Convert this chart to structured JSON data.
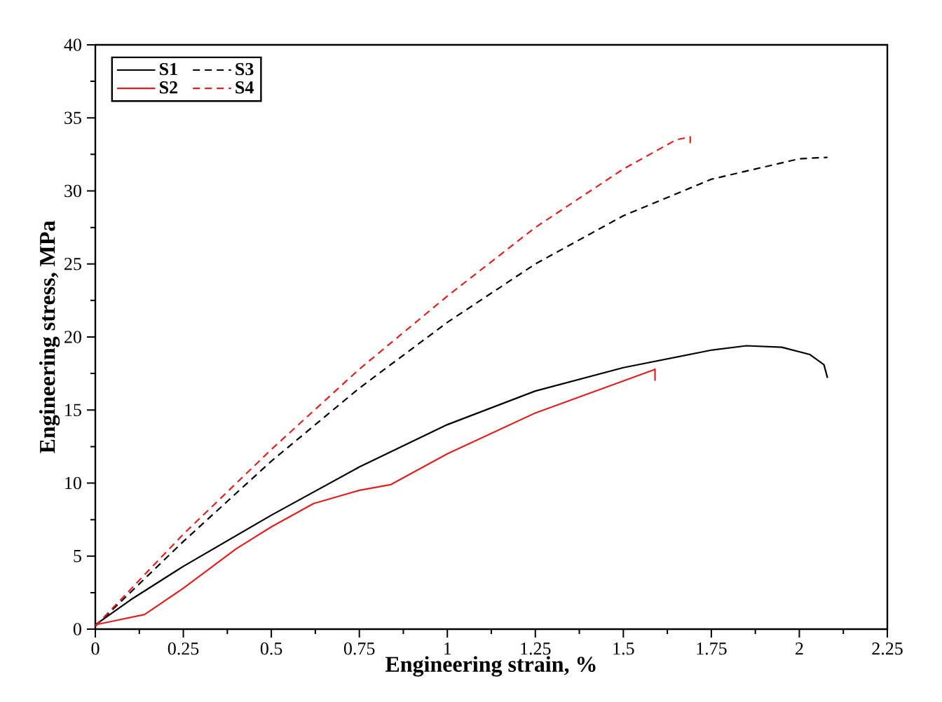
{
  "chart_data": {
    "type": "line",
    "xlabel": "Engineering strain, %",
    "ylabel": "Engineering stress, MPa",
    "xlim": [
      0,
      2.25
    ],
    "ylim": [
      0,
      40
    ],
    "xticks": [
      0,
      0.25,
      0.5,
      0.75,
      1,
      1.25,
      1.5,
      1.75,
      2,
      2.25
    ],
    "yticks": [
      0,
      5,
      10,
      15,
      20,
      25,
      30,
      35,
      40
    ],
    "legend": "top left",
    "grid": false,
    "series": [
      {
        "name": "S1",
        "color": "#000000",
        "line_style": "solid",
        "x": [
          0,
          0.1,
          0.25,
          0.5,
          0.75,
          1.0,
          1.25,
          1.5,
          1.75,
          1.85,
          1.95,
          2.03,
          2.07,
          2.08
        ],
        "values": [
          0.3,
          2.0,
          4.3,
          7.8,
          11.1,
          14.0,
          16.3,
          17.9,
          19.1,
          19.4,
          19.3,
          18.8,
          18.1,
          17.2
        ]
      },
      {
        "name": "S2",
        "color": "#e02020",
        "line_style": "solid",
        "x": [
          0,
          0.14,
          0.25,
          0.4,
          0.5,
          0.62,
          0.75,
          0.84,
          1.0,
          1.25,
          1.586,
          1.59,
          1.59
        ],
        "values": [
          0.3,
          1.0,
          2.8,
          5.5,
          7.0,
          8.6,
          9.5,
          9.9,
          12.0,
          14.8,
          17.75,
          17.8,
          17.0
        ]
      },
      {
        "name": "S3",
        "color": "#000000",
        "line_style": "dashed",
        "x": [
          0,
          0.25,
          0.5,
          0.75,
          1.0,
          1.25,
          1.5,
          1.75,
          2.0,
          2.08
        ],
        "values": [
          0.2,
          6.0,
          11.5,
          16.5,
          21.0,
          25.0,
          28.3,
          30.8,
          32.2,
          32.3
        ]
      },
      {
        "name": "S4",
        "color": "#e02020",
        "line_style": "dashed",
        "x": [
          0,
          0.25,
          0.5,
          0.75,
          1.0,
          1.25,
          1.5,
          1.65,
          1.69,
          1.69
        ],
        "values": [
          0.2,
          6.5,
          12.3,
          17.8,
          22.8,
          27.5,
          31.5,
          33.5,
          33.7,
          33.2
        ]
      }
    ]
  }
}
